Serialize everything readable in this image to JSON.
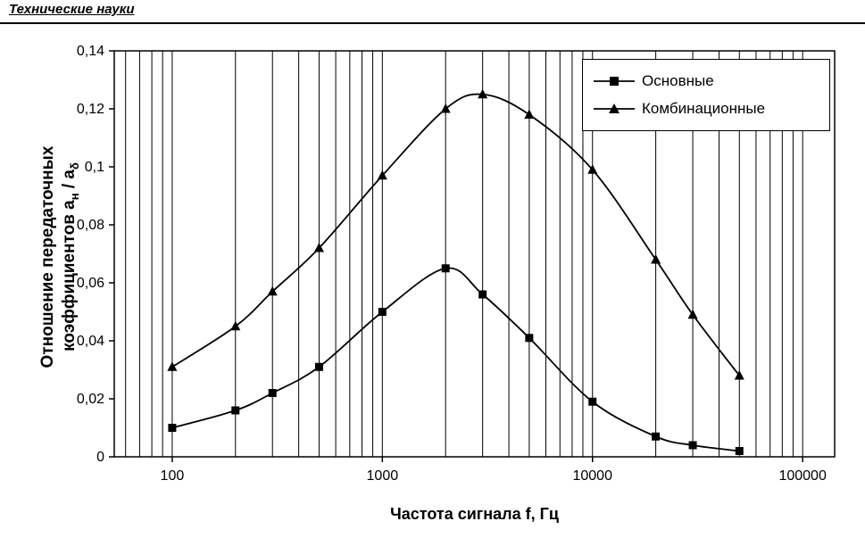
{
  "header": {
    "title": "Технические науки"
  },
  "chart_data": {
    "type": "line",
    "x_scale": "log",
    "x": [
      100,
      200,
      300,
      500,
      1000,
      2000,
      3000,
      5000,
      10000,
      20000,
      30000,
      50000
    ],
    "series": [
      {
        "name": "Основные",
        "marker": "square",
        "values": [
          0.01,
          0.016,
          0.022,
          0.031,
          0.05,
          0.065,
          0.056,
          0.041,
          0.019,
          0.007,
          0.004,
          0.002
        ]
      },
      {
        "name": "Комбинационные",
        "marker": "triangle",
        "values": [
          0.031,
          0.045,
          0.057,
          0.072,
          0.097,
          0.12,
          0.125,
          0.118,
          0.099,
          0.068,
          0.049,
          0.028
        ]
      }
    ],
    "xlabel": "Частота сигнала f, Гц",
    "ylabel_line1": "Отношение передаточных",
    "ylabel_line2_prefix": "коэффициентов a",
    "ylabel_sub1": "н",
    "ylabel_mid": " / a",
    "ylabel_sub2": "δ",
    "xlim": [
      53,
      142000
    ],
    "ylim": [
      0,
      0.14
    ],
    "x_ticks": [
      100,
      1000,
      10000,
      100000
    ],
    "x_tick_labels": [
      "100",
      "1000",
      "10000",
      "100000"
    ],
    "y_tick_values": [
      0,
      0.02,
      0.04,
      0.06,
      0.08,
      0.1,
      0.12,
      0.14
    ],
    "y_tick_labels": [
      "0",
      "0,02",
      "0,04",
      "0,06",
      "0,08",
      "0,1",
      "0,12",
      "0,14"
    ],
    "grid": "vertical-log-minor",
    "legend_position": "top-right",
    "line_color": "#000000",
    "background": "#ffffff"
  }
}
